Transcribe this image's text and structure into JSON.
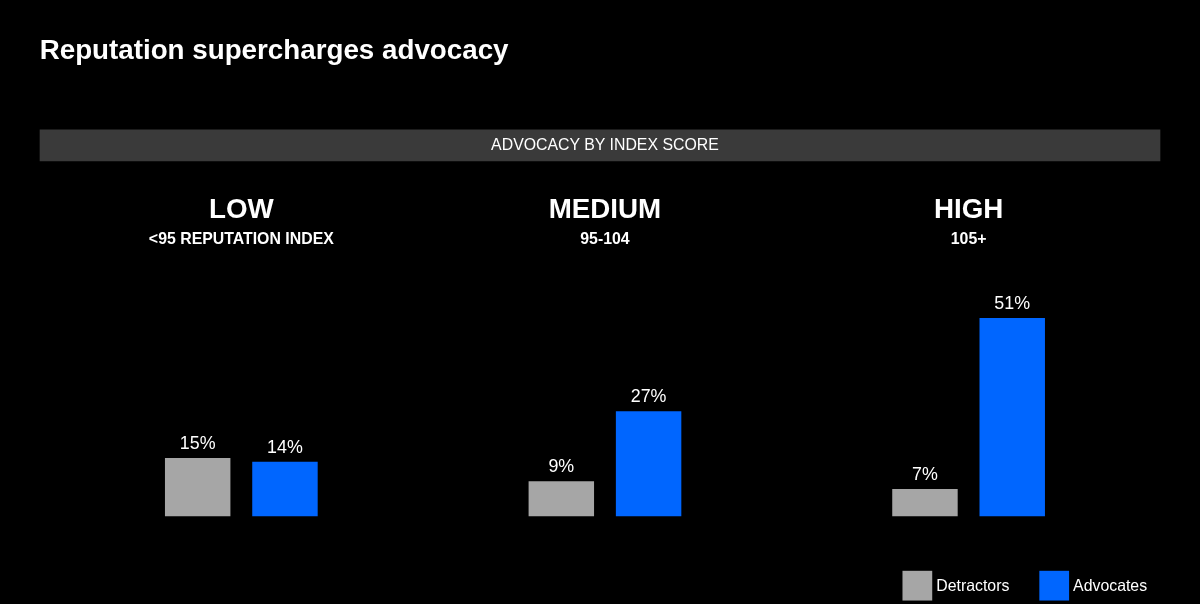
{
  "chart_data": {
    "type": "bar",
    "title": "Reputation supercharges advocacy",
    "subtitle": "ADVOCACY BY INDEX SCORE",
    "categories": [
      "LOW",
      "MEDIUM",
      "HIGH"
    ],
    "annotations": [
      "<95 REPUTATION INDEX",
      "95-104",
      "105+"
    ],
    "series": [
      {
        "name": "Detractors",
        "color": "#a6a6a6",
        "values": [
          15,
          9,
          7
        ],
        "value_labels": [
          "15%",
          "9%",
          "7%"
        ]
      },
      {
        "name": "Advocates",
        "color": "#0066ff",
        "values": [
          14,
          27,
          51
        ],
        "value_labels": [
          "14%",
          "27%",
          "51%"
        ]
      }
    ],
    "legend": "bottom right"
  }
}
